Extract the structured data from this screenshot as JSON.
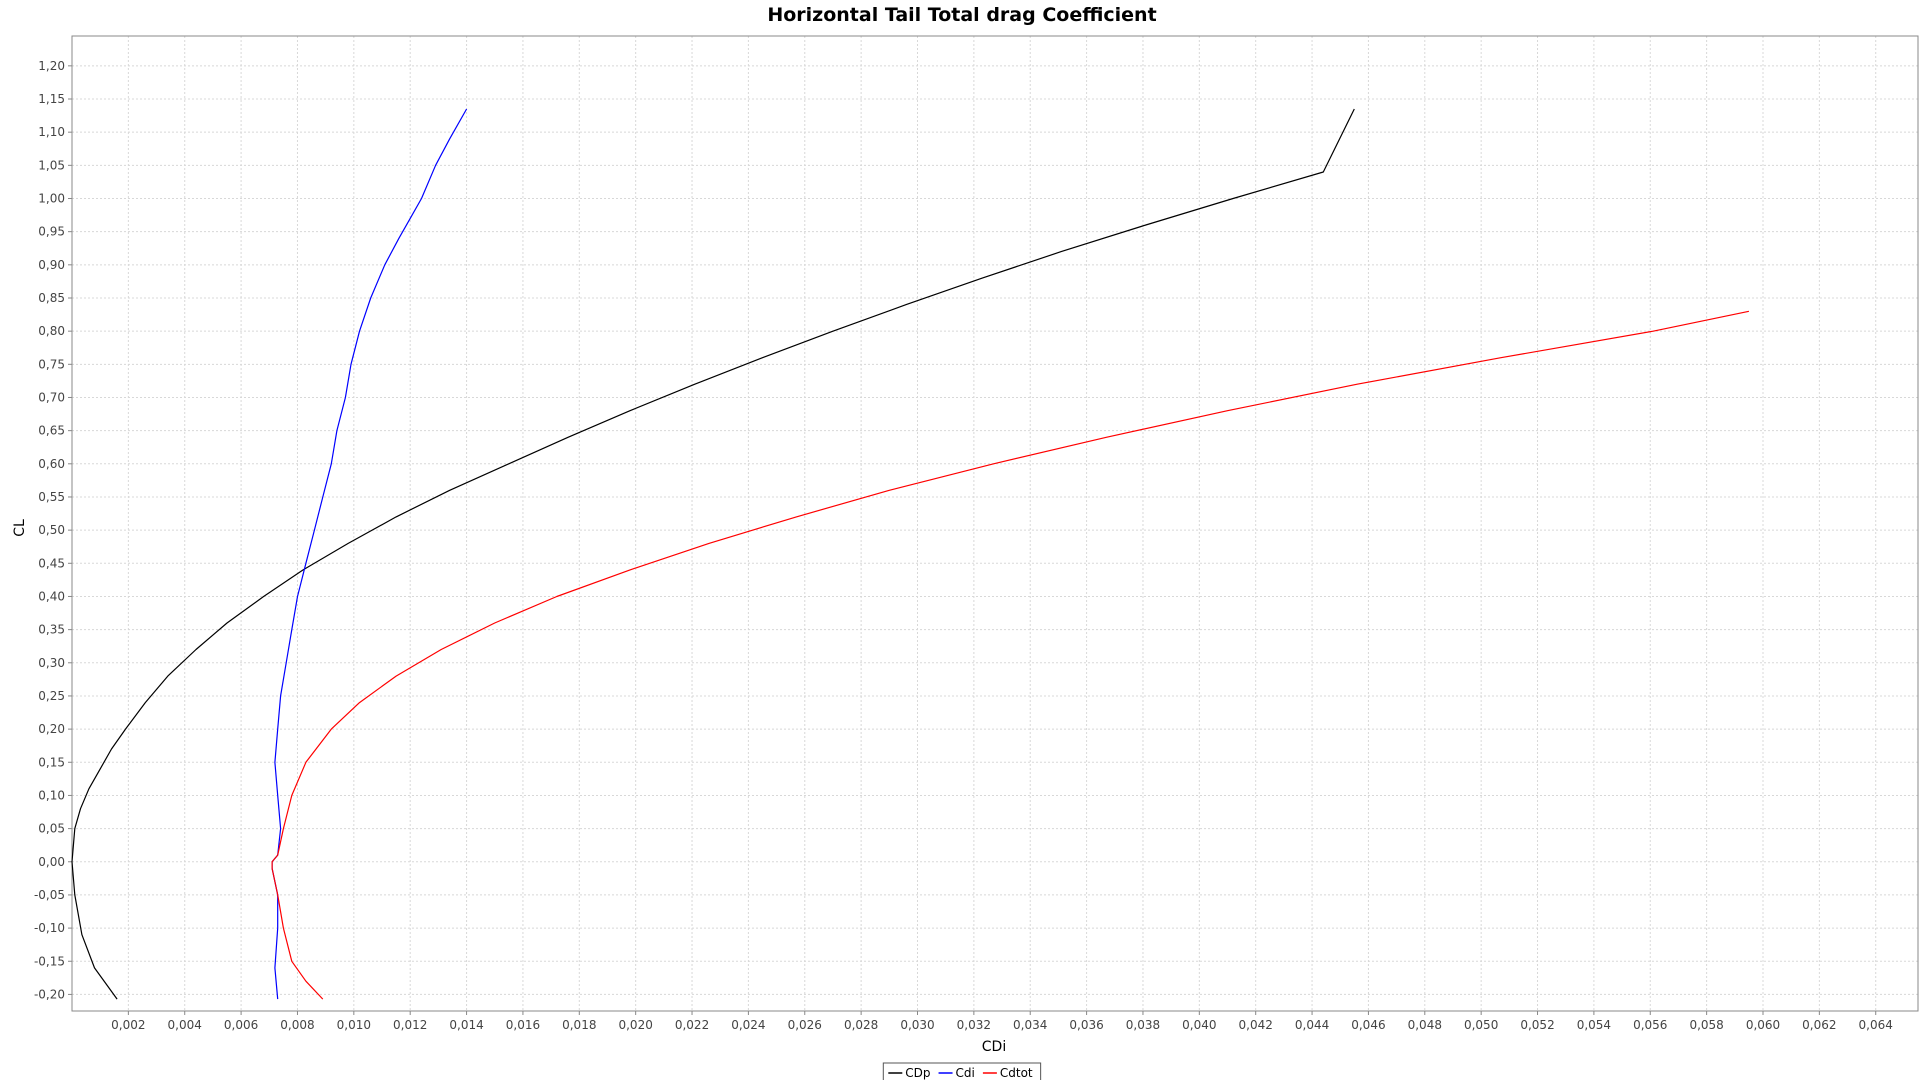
{
  "chart_data": {
    "type": "line",
    "title": "Horizontal Tail Total drag Coefficient",
    "xlabel": "CDi",
    "ylabel": "CL",
    "xlim": [
      0.0,
      0.0655
    ],
    "ylim": [
      -0.225,
      1.245
    ],
    "x_ticks": [
      "0,002",
      "0,004",
      "0,006",
      "0,008",
      "0,010",
      "0,012",
      "0,014",
      "0,016",
      "0,018",
      "0,020",
      "0,022",
      "0,024",
      "0,026",
      "0,028",
      "0,030",
      "0,032",
      "0,034",
      "0,036",
      "0,038",
      "0,040",
      "0,042",
      "0,044",
      "0,046",
      "0,048",
      "0,050",
      "0,052",
      "0,054",
      "0,056",
      "0,058",
      "0,060",
      "0,062",
      "0,064"
    ],
    "y_ticks": [
      "-0,20",
      "-0,15",
      "-0,10",
      "-0,05",
      "0,00",
      "0,05",
      "0,10",
      "0,15",
      "0,20",
      "0,25",
      "0,30",
      "0,35",
      "0,40",
      "0,45",
      "0,50",
      "0,55",
      "0,60",
      "0,65",
      "0,70",
      "0,75",
      "0,80",
      "0,85",
      "0,90",
      "0,95",
      "1,00",
      "1,05",
      "1,10",
      "1,15",
      "1,20"
    ],
    "grid": true,
    "legend_position": "bottom-center",
    "series": [
      {
        "name": "CDp",
        "color": "#000000",
        "points": [
          [
            0.0016,
            -0.207
          ],
          [
            0.0008,
            -0.16
          ],
          [
            0.00035,
            -0.11
          ],
          [
            0.0001,
            -0.05
          ],
          [
            0.0,
            0.0
          ],
          [
            0.0001,
            0.05
          ],
          [
            0.0003,
            0.08
          ],
          [
            0.0006,
            0.11
          ],
          [
            0.001,
            0.14
          ],
          [
            0.0014,
            0.17
          ],
          [
            0.0019,
            0.2
          ],
          [
            0.0026,
            0.24
          ],
          [
            0.0034,
            0.28
          ],
          [
            0.0044,
            0.32
          ],
          [
            0.0055,
            0.36
          ],
          [
            0.0068,
            0.4
          ],
          [
            0.0082,
            0.44
          ],
          [
            0.0098,
            0.48
          ],
          [
            0.0115,
            0.52
          ],
          [
            0.0134,
            0.56
          ],
          [
            0.0155,
            0.6
          ],
          [
            0.0176,
            0.64
          ],
          [
            0.0198,
            0.68
          ],
          [
            0.0221,
            0.72
          ],
          [
            0.0245,
            0.76
          ],
          [
            0.027,
            0.8
          ],
          [
            0.0296,
            0.84
          ],
          [
            0.0323,
            0.88
          ],
          [
            0.0351,
            0.92
          ],
          [
            0.0381,
            0.96
          ],
          [
            0.0412,
            1.0
          ],
          [
            0.0444,
            1.04
          ],
          [
            0.0455,
            1.135
          ]
        ]
      },
      {
        "name": "Cdi",
        "color": "#0000ff",
        "points": [
          [
            0.0073,
            -0.207
          ],
          [
            0.0072,
            -0.16
          ],
          [
            0.0073,
            -0.1
          ],
          [
            0.0073,
            -0.05
          ],
          [
            0.0071,
            -0.01
          ],
          [
            0.0071,
            0.0
          ],
          [
            0.0073,
            0.01
          ],
          [
            0.0074,
            0.05
          ],
          [
            0.0073,
            0.1
          ],
          [
            0.0072,
            0.15
          ],
          [
            0.0073,
            0.2
          ],
          [
            0.0074,
            0.25
          ],
          [
            0.0076,
            0.3
          ],
          [
            0.0078,
            0.35
          ],
          [
            0.008,
            0.4
          ],
          [
            0.0083,
            0.45
          ],
          [
            0.0086,
            0.5
          ],
          [
            0.0089,
            0.55
          ],
          [
            0.0092,
            0.6
          ],
          [
            0.0094,
            0.65
          ],
          [
            0.0097,
            0.7
          ],
          [
            0.0099,
            0.75
          ],
          [
            0.0102,
            0.8
          ],
          [
            0.0106,
            0.85
          ],
          [
            0.0111,
            0.9
          ],
          [
            0.0116,
            0.94
          ],
          [
            0.012,
            0.97
          ],
          [
            0.0124,
            1.0
          ],
          [
            0.0129,
            1.05
          ],
          [
            0.0134,
            1.09
          ],
          [
            0.014,
            1.135
          ]
        ]
      },
      {
        "name": "Cdtot",
        "color": "#ff0000",
        "points": [
          [
            0.0089,
            -0.207
          ],
          [
            0.0083,
            -0.18
          ],
          [
            0.0078,
            -0.15
          ],
          [
            0.0075,
            -0.1
          ],
          [
            0.0073,
            -0.05
          ],
          [
            0.0071,
            -0.01
          ],
          [
            0.0071,
            0.0
          ],
          [
            0.0073,
            0.01
          ],
          [
            0.0075,
            0.05
          ],
          [
            0.0078,
            0.1
          ],
          [
            0.0083,
            0.15
          ],
          [
            0.0092,
            0.2
          ],
          [
            0.0102,
            0.24
          ],
          [
            0.0115,
            0.28
          ],
          [
            0.0131,
            0.32
          ],
          [
            0.015,
            0.36
          ],
          [
            0.0172,
            0.4
          ],
          [
            0.0198,
            0.44
          ],
          [
            0.0226,
            0.48
          ],
          [
            0.0257,
            0.52
          ],
          [
            0.029,
            0.56
          ],
          [
            0.0327,
            0.6
          ],
          [
            0.0367,
            0.64
          ],
          [
            0.041,
            0.68
          ],
          [
            0.0456,
            0.72
          ],
          [
            0.0507,
            0.76
          ],
          [
            0.0561,
            0.8
          ],
          [
            0.0595,
            0.83
          ]
        ]
      }
    ]
  }
}
